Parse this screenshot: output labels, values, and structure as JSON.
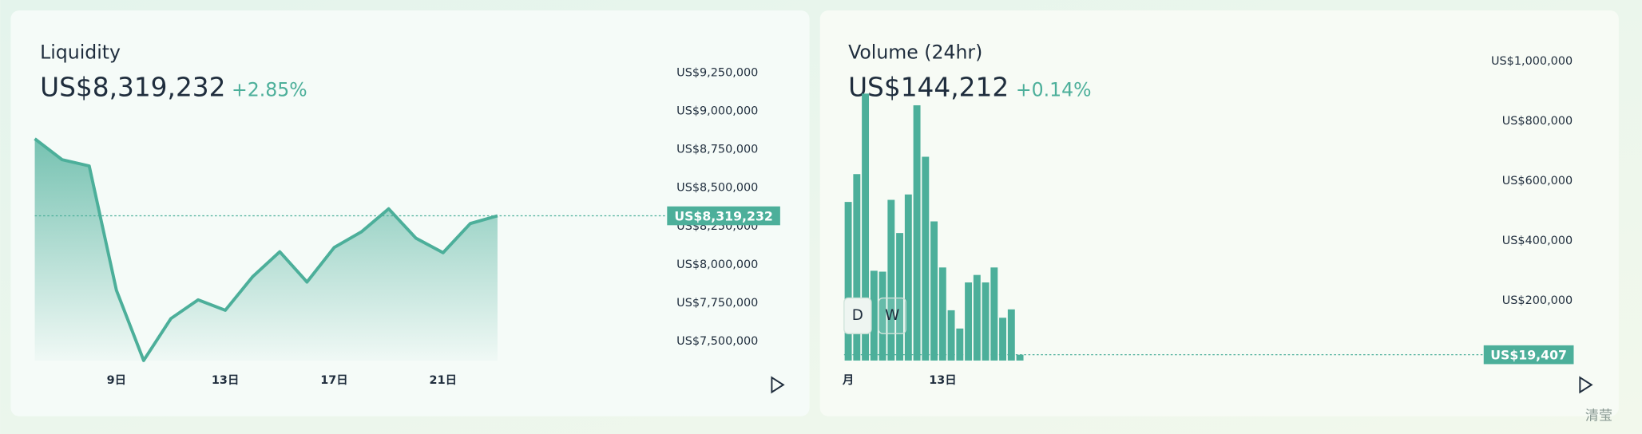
{
  "chart_data": [
    {
      "type": "line",
      "title": "Liquidity",
      "current": {
        "value": 8319232,
        "label": "US$8,319,232"
      },
      "change": "+2.85%",
      "categories": [
        null,
        null,
        null,
        "9日",
        null,
        null,
        null,
        "13日",
        null,
        null,
        null,
        "17日",
        null,
        null,
        null,
        "21日",
        null,
        null
      ],
      "values": [
        8821000,
        8685000,
        8644000,
        7834000,
        7377000,
        7650000,
        7772000,
        7704000,
        7922000,
        8085000,
        7888000,
        8113000,
        8215000,
        8365000,
        8174000,
        8079000,
        8269000,
        8319232
      ],
      "color": "#4caf9a",
      "ylim": [
        7375000,
        9500000
      ],
      "yticks": [
        {
          "value": 7500000,
          "label": "US$7,500,000"
        },
        {
          "value": 7750000,
          "label": "US$7,750,000"
        },
        {
          "value": 8000000,
          "label": "US$8,000,000"
        },
        {
          "value": 8250000,
          "label": "US$8,250,000"
        },
        {
          "value": 8500000,
          "label": "US$8,500,000"
        },
        {
          "value": 8750000,
          "label": "US$8,750,000"
        },
        {
          "value": 9000000,
          "label": "US$9,000,000"
        },
        {
          "value": 9250000,
          "label": "US$9,250,000"
        }
      ]
    },
    {
      "type": "bar",
      "title": "Volume (24hr)",
      "headline": "US$144,212",
      "change": "+0.14%",
      "current": {
        "value": 19407,
        "label": "US$19,407"
      },
      "categories": [
        "月",
        null,
        null,
        null,
        null,
        null,
        null,
        null,
        null,
        null,
        null,
        "13日",
        null,
        null,
        null,
        null,
        null,
        null,
        null,
        null,
        null
      ],
      "values": [
        530000,
        623000,
        892000,
        300000,
        297000,
        537000,
        426000,
        555000,
        853000,
        681000,
        465000,
        311000,
        168000,
        107000,
        261000,
        286000,
        261000,
        311000,
        143000,
        171000,
        19407
      ],
      "color": "#4caf9a",
      "ylim": [
        0,
        1100000
      ],
      "yticks": [
        {
          "value": 200000,
          "label": "US$200,000"
        },
        {
          "value": 400000,
          "label": "US$400,000"
        },
        {
          "value": 600000,
          "label": "US$600,000"
        },
        {
          "value": 800000,
          "label": "US$800,000"
        },
        {
          "value": 1000000,
          "label": "US$1,000,000"
        }
      ]
    }
  ],
  "controls": {
    "buttons": [
      "D",
      "W"
    ]
  },
  "watermark": "清莹"
}
